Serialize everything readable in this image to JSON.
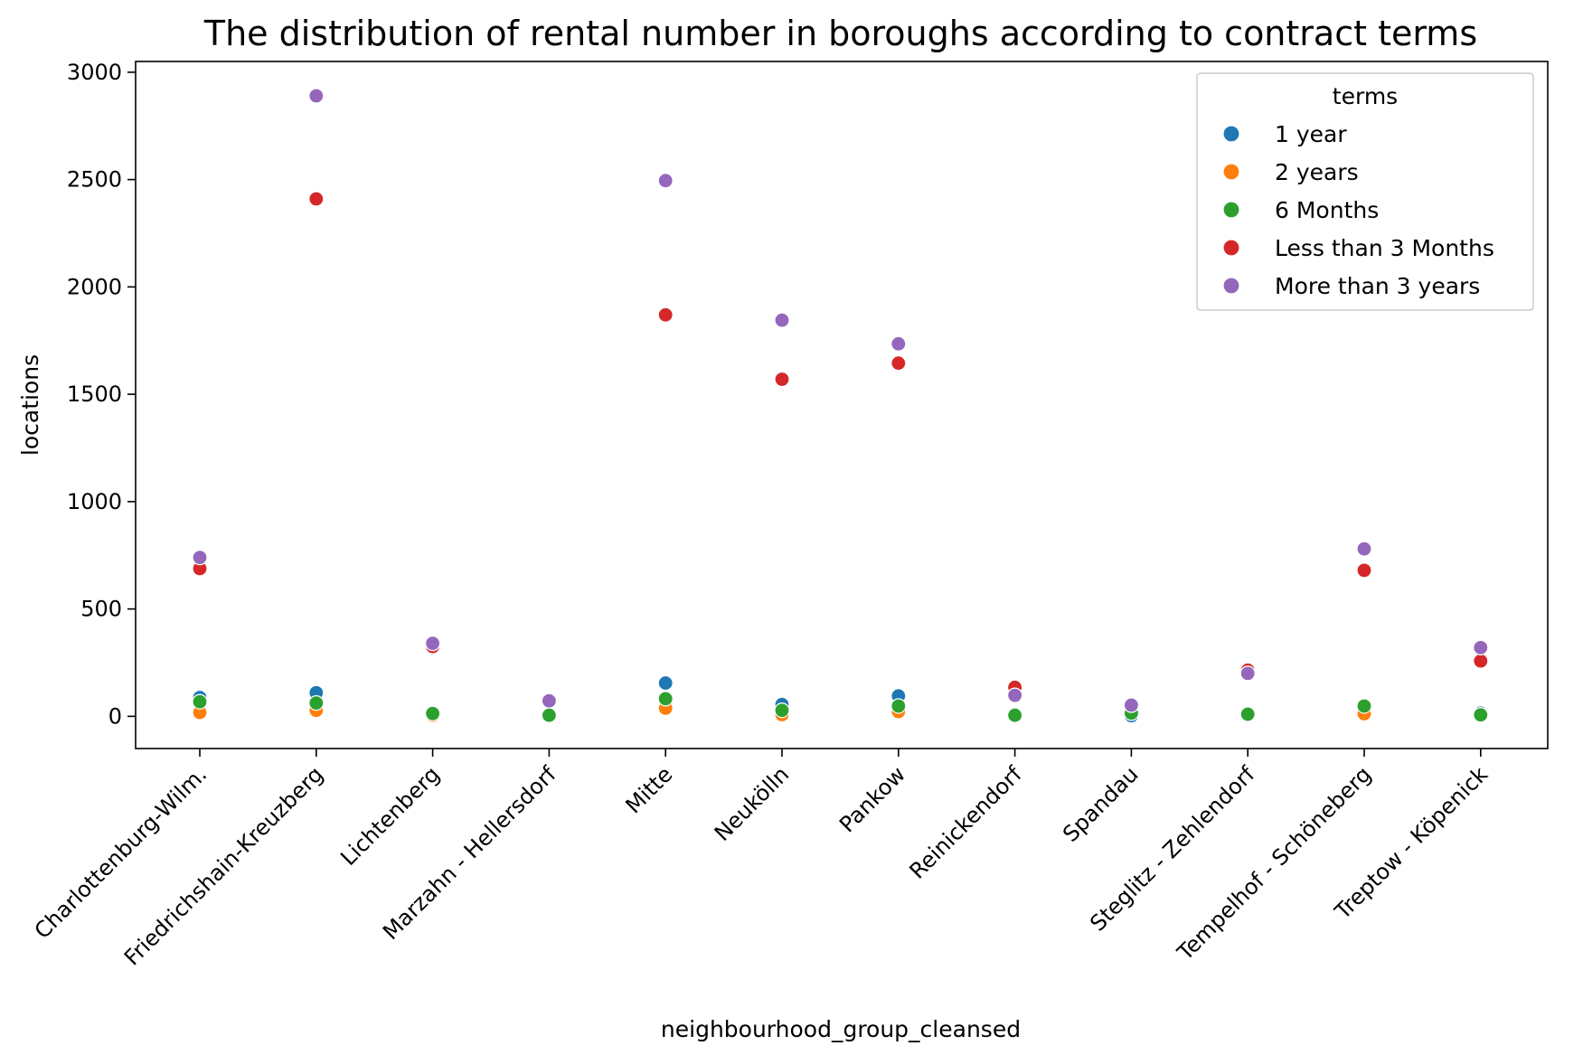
{
  "chart_data": {
    "type": "scatter",
    "title": "The distribution of rental number in boroughs according to contract terms",
    "xlabel": "neighbourhood_group_cleansed",
    "ylabel": "locations",
    "categories": [
      "Charlottenburg-Wilm.",
      "Friedrichshain-Kreuzberg",
      "Lichtenberg",
      "Marzahn - Hellersdorf",
      "Mitte",
      "Neukölln",
      "Pankow",
      "Reinickendorf",
      "Spandau",
      "Steglitz - Zehlendorf",
      "Tempelhof - Schöneberg",
      "Treptow - Köpenick"
    ],
    "ylim": [
      -150,
      3050
    ],
    "yticks": [
      0,
      500,
      1000,
      1500,
      2000,
      2500,
      3000
    ],
    "grid": false,
    "legend": {
      "title": "terms",
      "position": "top-right"
    },
    "series": [
      {
        "name": "1 year",
        "color": "#1f77b4",
        "values": [
          88,
          110,
          10,
          null,
          155,
          55,
          95,
          10,
          3,
          12,
          45,
          15
        ]
      },
      {
        "name": "2 years",
        "color": "#ff7f0e",
        "values": [
          18,
          28,
          5,
          null,
          38,
          8,
          22,
          5,
          null,
          5,
          12,
          7
        ]
      },
      {
        "name": "6 Months",
        "color": "#2ca02c",
        "values": [
          68,
          62,
          13,
          5,
          82,
          28,
          48,
          5,
          15,
          10,
          48,
          7
        ]
      },
      {
        "name": "Less than 3 Months",
        "color": "#d62728",
        "values": [
          688,
          2410,
          325,
          null,
          1870,
          1570,
          1645,
          135,
          null,
          215,
          680,
          258
        ]
      },
      {
        "name": "More than 3 years",
        "color": "#9467bd",
        "values": [
          740,
          2890,
          340,
          72,
          2495,
          1845,
          1735,
          98,
          52,
          200,
          780,
          320
        ]
      }
    ]
  }
}
